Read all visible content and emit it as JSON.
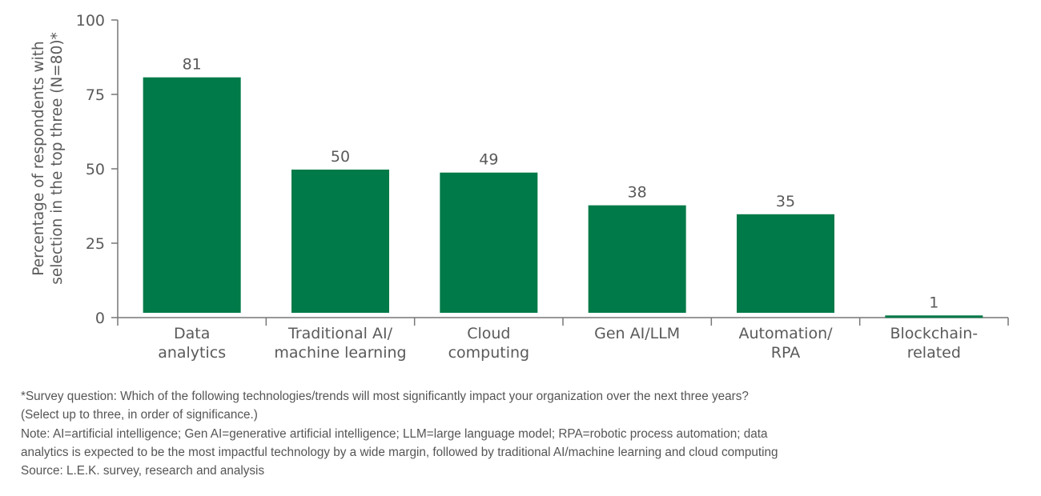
{
  "chart_data": {
    "type": "bar",
    "categories": [
      [
        "Data",
        "analytics"
      ],
      [
        "Traditional AI/",
        "machine learning"
      ],
      [
        "Cloud",
        "computing"
      ],
      [
        "Gen AI/LLM"
      ],
      [
        "Automation/",
        "RPA"
      ],
      [
        "Blockchain-",
        "related"
      ]
    ],
    "values": [
      81,
      50,
      49,
      38,
      35,
      1
    ],
    "ylabel": [
      "Percentage of respondents with",
      "selection in the top three (N=80)*"
    ],
    "ylim": [
      0,
      100
    ],
    "yticks": [
      0,
      25,
      50,
      75,
      100
    ],
    "grid": false,
    "bar_color": "#007a48",
    "data_labels": true
  },
  "footnotes": {
    "survey_question": "*Survey question: Which of the following technologies/trends will most significantly impact your organization over the next three years?",
    "survey_question_2": "(Select up to three, in order of significance.)",
    "note": "Note: AI=artificial intelligence; Gen AI=generative artificial intelligence; LLM=large language model; RPA=robotic process automation; data",
    "note_2": "analytics is expected to be the most impactful technology by a wide margin, followed by traditional AI/machine learning and cloud computing",
    "source": "Source: L.E.K. survey, research and analysis"
  }
}
